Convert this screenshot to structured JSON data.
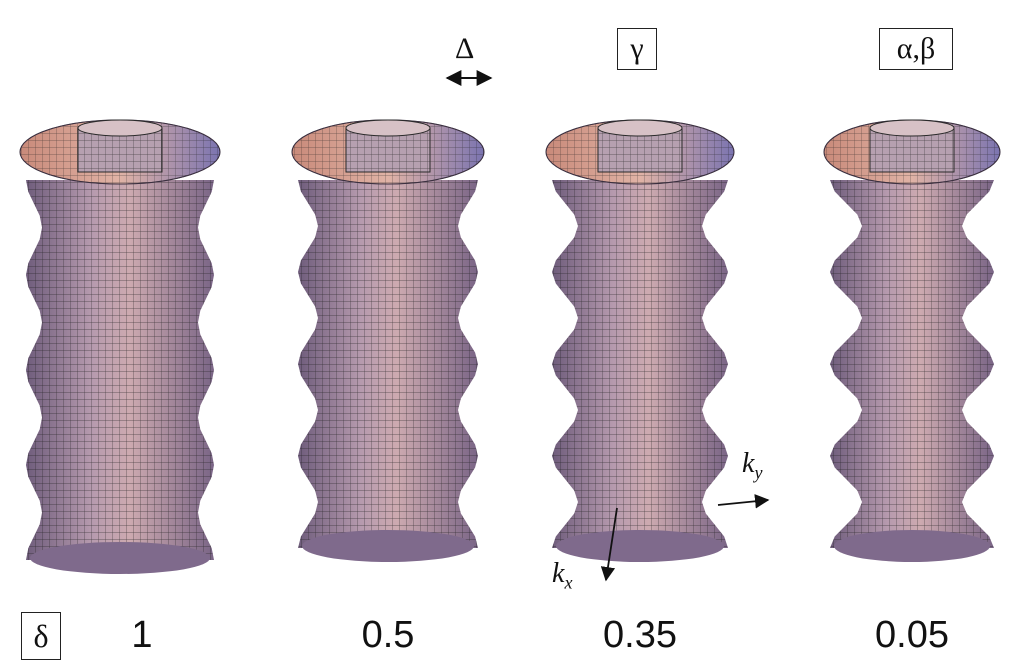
{
  "annotations": {
    "delta_symbol": "δ",
    "Delta_symbol": "Δ",
    "gamma_box": "γ",
    "alpha_beta_box": "α,β",
    "kx_main": "k",
    "kx_sub": "x",
    "ky_main": "k",
    "ky_sub": "y"
  },
  "surfaces": [
    {
      "value": "1"
    },
    {
      "value": "0.5"
    },
    {
      "value": "0.35"
    },
    {
      "value": "0.05"
    }
  ],
  "colors": {
    "surface_light": "#d9a59a",
    "surface_mid": "#a98aa0",
    "surface_dark": "#6f5d7c",
    "mesh": "#1c1c1c"
  }
}
